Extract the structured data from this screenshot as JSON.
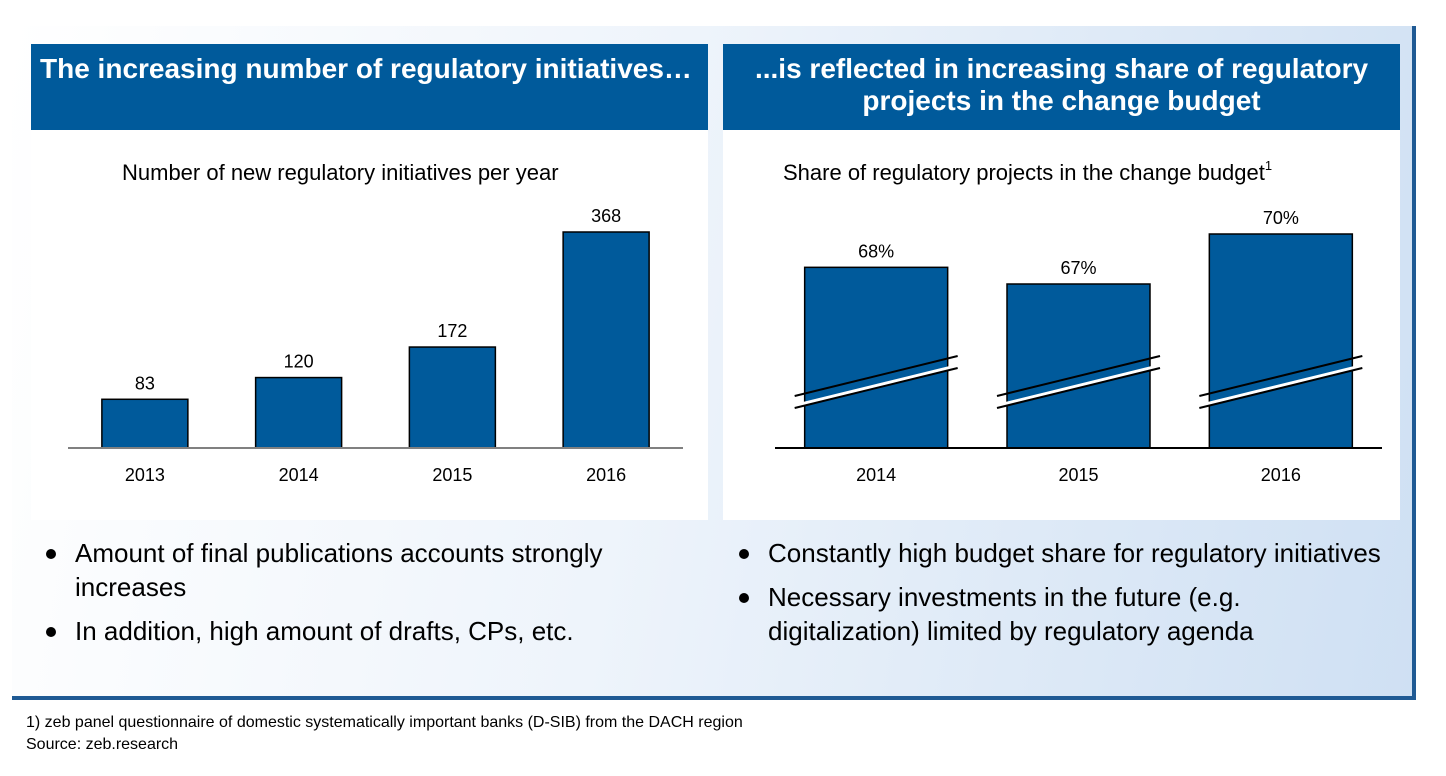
{
  "left": {
    "header": "The increasing number of regulatory initiatives…",
    "chart_title": "Number of new regulatory initiatives per year",
    "bullets": [
      "Amount of final publications accounts strongly increases",
      "In addition, high amount of drafts, CPs, etc."
    ]
  },
  "right": {
    "header": "...is reflected in increasing share of regulatory projects in the change budget",
    "chart_title": "Share of regulatory projects in the change budget",
    "chart_title_sup": "1",
    "bullets": [
      "Constantly high budget share for regulatory initiatives",
      "Necessary investments in the future (e.g. digitalization) limited by regulatory agenda"
    ]
  },
  "footnote": [
    "1) zeb panel questionnaire of domestic systematically important banks (D-SIB) from the DACH region",
    "Source: zeb.research"
  ],
  "colors": {
    "header_bg": "#005a9b",
    "bar_fill": "#005a9b",
    "accent": "#1f5a94"
  },
  "chart_data": [
    {
      "type": "bar",
      "title": "Number of new regulatory initiatives per year",
      "categories": [
        "2013",
        "2014",
        "2015",
        "2016"
      ],
      "values": [
        83,
        120,
        172,
        368
      ],
      "labels": [
        "83",
        "120",
        "172",
        "368"
      ],
      "ylim": [
        0,
        400
      ],
      "grid": false,
      "legend": "none"
    },
    {
      "type": "bar",
      "title": "Share of regulatory projects in the change budget",
      "categories": [
        "2014",
        "2015",
        "2016"
      ],
      "values": [
        68,
        67,
        70
      ],
      "labels": [
        "68%",
        "67%",
        "70%"
      ],
      "axis_break": true,
      "grid": false,
      "legend": "none"
    }
  ]
}
